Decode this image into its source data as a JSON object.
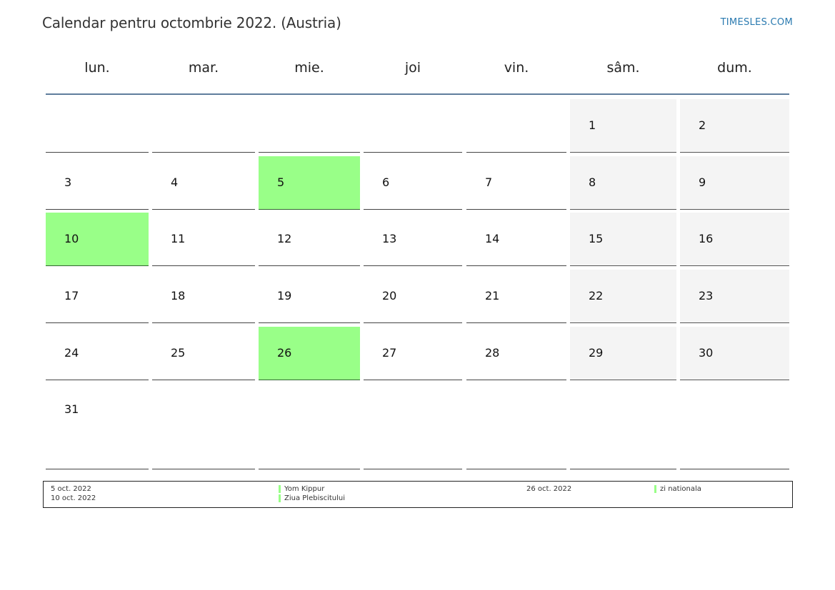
{
  "header": {
    "title": "Calendar pentru octombrie 2022. (Austria)",
    "brand": "TIMESLES.COM"
  },
  "weekdays": [
    "lun.",
    "mar.",
    "mie.",
    "joi",
    "vin.",
    "sâm.",
    "dum."
  ],
  "weeks": [
    [
      "",
      "",
      "",
      "",
      "",
      "1",
      "2"
    ],
    [
      "3",
      "4",
      "5",
      "6",
      "7",
      "8",
      "9"
    ],
    [
      "10",
      "11",
      "12",
      "13",
      "14",
      "15",
      "16"
    ],
    [
      "17",
      "18",
      "19",
      "20",
      "21",
      "22",
      "23"
    ],
    [
      "24",
      "25",
      "26",
      "27",
      "28",
      "29",
      "30"
    ],
    [
      "31",
      "",
      "",
      "",
      "",
      "",
      ""
    ]
  ],
  "holidays": [
    "5",
    "10",
    "26"
  ],
  "colors": {
    "holiday": "#99ff88",
    "weekend": "#f4f4f4",
    "header_rule": "#5f7d9c",
    "brand": "#2a7ab0"
  },
  "legend": {
    "left_dates": [
      "5 oct. 2022",
      "10 oct. 2022"
    ],
    "left_names": [
      "Yom Kippur",
      "Ziua Plebiscitului"
    ],
    "right_dates": [
      "26 oct. 2022"
    ],
    "right_names": [
      "zi nationala"
    ]
  }
}
